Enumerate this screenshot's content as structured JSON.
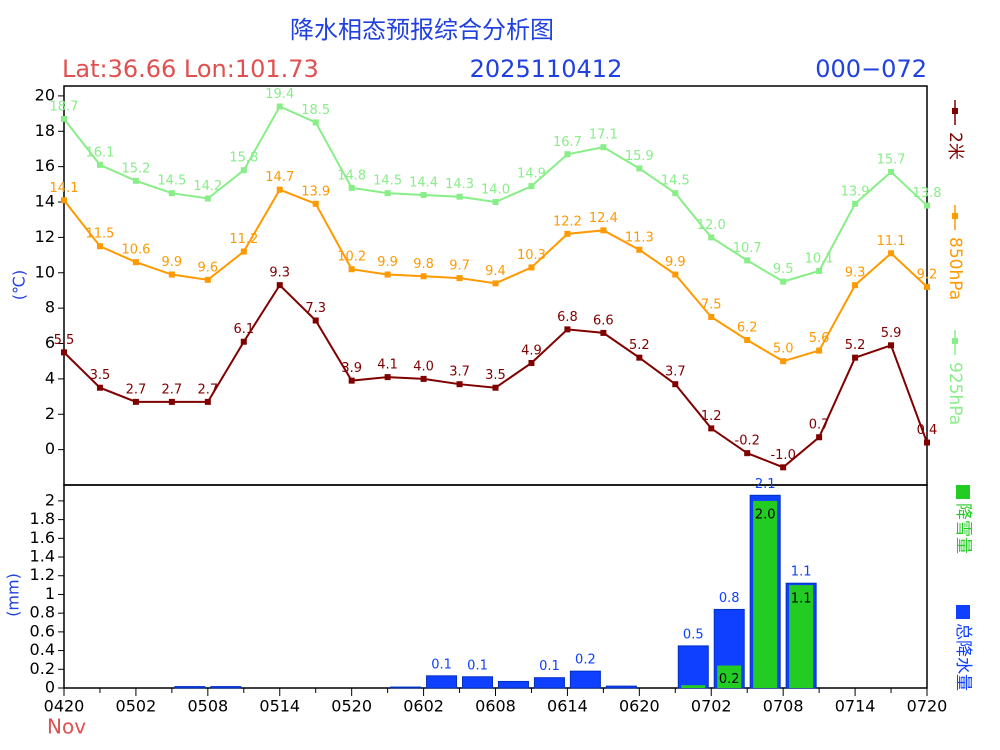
{
  "header": {
    "title": "降水相态预报综合分析图",
    "location": "Lat:36.66 Lon:101.73",
    "init_time": "2025110412",
    "range": "000−072"
  },
  "chart_data": [
    {
      "type": "line",
      "y_label": "(℃)",
      "ylim": [
        -2,
        20.56
      ],
      "yticks": [
        0,
        2,
        4,
        6,
        8,
        10,
        12,
        14,
        16,
        18,
        20
      ],
      "series": [
        {
          "name": "2米",
          "color": "#800000",
          "values": [
            5.5,
            3.5,
            2.7,
            2.7,
            2.7,
            6.1,
            9.3,
            7.3,
            3.9,
            4.1,
            4.0,
            3.7,
            3.5,
            4.9,
            6.8,
            6.6,
            5.2,
            3.7,
            1.2,
            -0.2,
            -1.0,
            0.7,
            5.2,
            5.9,
            0.4
          ],
          "value_labels": [
            "5.5",
            "3.5",
            "2.7",
            "2.7",
            "2.7",
            "6.1",
            "9.3",
            "7.3",
            "3.9",
            "4.1",
            "4.0",
            "3.7",
            "3.5",
            "4.9",
            "6.8",
            "6.6",
            "5.2",
            "3.7",
            "1.2",
            "-0.2",
            "-1.0",
            "0.7",
            "5.2",
            "5.9",
            "0.4"
          ]
        },
        {
          "name": "850hPa",
          "color": "#ff9900",
          "values": [
            14.1,
            11.5,
            10.6,
            9.9,
            9.6,
            11.2,
            14.7,
            13.9,
            10.2,
            9.9,
            9.8,
            9.7,
            9.4,
            10.3,
            12.2,
            12.4,
            11.3,
            9.9,
            7.5,
            6.2,
            5.0,
            5.6,
            9.3,
            11.1,
            9.2
          ],
          "value_labels": [
            "14.1",
            "11.5",
            "10.6",
            "9.9",
            "9.6",
            "11.2",
            "14.7",
            "13.9",
            "10.2",
            "9.9",
            "9.8",
            "9.7",
            "9.4",
            "10.3",
            "12.2",
            "12.4",
            "11.3",
            "9.9",
            "7.5",
            "6.2",
            "5.0",
            "5.6",
            "9.3",
            "11.1",
            "9.2"
          ]
        },
        {
          "name": "925hPa",
          "color": "#88ee88",
          "values": [
            18.7,
            16.1,
            15.2,
            14.5,
            14.2,
            15.8,
            19.4,
            18.5,
            14.8,
            14.5,
            14.4,
            14.3,
            14.0,
            14.9,
            16.7,
            17.1,
            15.9,
            14.5,
            12.0,
            10.7,
            9.5,
            10.1,
            13.9,
            15.7,
            13.8
          ],
          "value_labels": [
            "18.7",
            "16.1",
            "15.2",
            "14.5",
            "14.2",
            "15.8",
            "19.4",
            "18.5",
            "14.8",
            "14.5",
            "14.4",
            "14.3",
            "14.0",
            "14.9",
            "16.7",
            "17.1",
            "15.9",
            "14.5",
            "12.0",
            "10.7",
            "9.5",
            "10.1",
            "13.9",
            "15.7",
            "13.8"
          ]
        }
      ]
    },
    {
      "type": "bar",
      "y_label": "(mm)",
      "x_sublabel": "Nov",
      "categories": [
        "0420",
        null,
        "0502",
        null,
        "0508",
        null,
        "0514",
        null,
        "0520",
        null,
        "0602",
        null,
        "0608",
        null,
        "0614",
        null,
        "0620",
        null,
        "0702",
        null,
        "0708",
        null,
        "0714",
        null,
        "0720"
      ],
      "ylim": [
        0,
        2.17
      ],
      "yticks": [
        0,
        0.2,
        0.4,
        0.6,
        0.8,
        1,
        1.2,
        1.4,
        1.6,
        1.8,
        2
      ],
      "series": [
        {
          "name": "总降水量",
          "color": "#1040ff",
          "values": [
            0,
            0,
            0,
            0.015,
            0.015,
            0,
            0,
            0,
            0,
            0.01,
            0.13,
            0.12,
            0.07,
            0.11,
            0.18,
            0.02,
            0,
            0.45,
            0.84,
            2.06,
            1.12,
            0,
            0,
            0,
            0
          ],
          "value_labels": [
            null,
            null,
            null,
            null,
            null,
            null,
            null,
            null,
            null,
            null,
            "0.1",
            "0.1",
            null,
            "0.1",
            "0.2",
            null,
            null,
            "0.5",
            "0.8",
            "2.1",
            "1.1",
            null,
            null,
            null,
            null
          ]
        },
        {
          "name": "降雪量",
          "color": "#22cc22",
          "values": [
            0,
            0,
            0,
            0,
            0,
            0,
            0,
            0,
            0,
            0,
            0,
            0,
            0,
            0,
            0,
            0,
            0,
            0.03,
            0.24,
            2.0,
            1.1,
            0,
            0,
            0,
            0
          ],
          "value_labels": [
            null,
            null,
            null,
            null,
            null,
            null,
            null,
            null,
            null,
            null,
            null,
            null,
            null,
            null,
            null,
            null,
            null,
            null,
            "0.2",
            "2.0",
            "1.1",
            null,
            null,
            null,
            null
          ]
        }
      ]
    }
  ]
}
